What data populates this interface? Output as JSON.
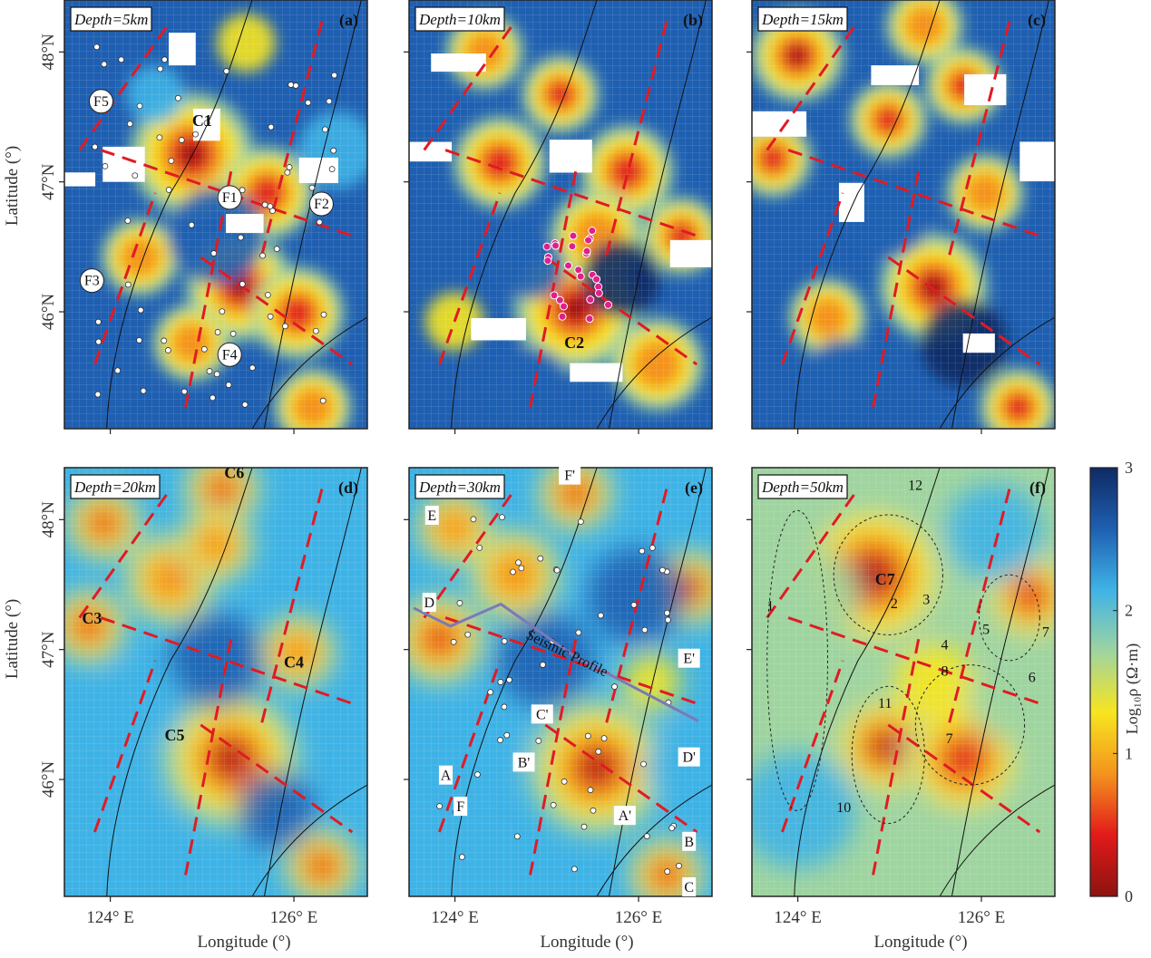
{
  "figure": {
    "y_axis_label": "Latitude (°)",
    "x_axis_label": "Longitude (°)",
    "colorbar_label": "Log₁₀ρ (Ω·m)"
  },
  "colormap": [
    "#8b1410",
    "#e21a1a",
    "#f4931e",
    "#f7e51f",
    "#9fd4a0",
    "#3fb3e6",
    "#1f5fb1",
    "#0f2a63"
  ],
  "chart_data": [
    {
      "type": "heatmap",
      "tag": "(a)",
      "depth_label": "Depth=5km",
      "xlim": [
        123.5,
        126.8
      ],
      "ylim": [
        45.1,
        48.4
      ],
      "x_ticks": [
        124,
        126
      ],
      "x_tick_labels": [
        "",
        ""
      ],
      "y_ticks": [
        46,
        47,
        48
      ],
      "y_tick_labels": [
        "46°N",
        "47°N",
        "48°N"
      ],
      "annotations": [
        {
          "text": "C1",
          "x": 125.0,
          "y": 47.43,
          "style": "white"
        },
        {
          "text": "F1",
          "x": 125.3,
          "y": 46.88,
          "style": "circle"
        },
        {
          "text": "F2",
          "x": 126.3,
          "y": 46.83,
          "style": "circle"
        },
        {
          "text": "F3",
          "x": 123.8,
          "y": 46.24,
          "style": "circle"
        },
        {
          "text": "F4",
          "x": 125.3,
          "y": 45.67,
          "style": "circle"
        },
        {
          "text": "F5",
          "x": 123.9,
          "y": 47.62,
          "style": "circle"
        }
      ]
    },
    {
      "type": "heatmap",
      "tag": "(b)",
      "depth_label": "Depth=10km",
      "xlim": [
        123.5,
        126.8
      ],
      "ylim": [
        45.1,
        48.4
      ],
      "x_ticks": [
        124,
        126
      ],
      "x_tick_labels": [
        "",
        ""
      ],
      "y_ticks": [
        46,
        47,
        48
      ],
      "y_tick_labels": [
        "",
        "",
        ""
      ],
      "annotations": [
        {
          "text": "C2",
          "x": 125.3,
          "y": 45.72,
          "style": "white"
        }
      ]
    },
    {
      "type": "heatmap",
      "tag": "(c)",
      "depth_label": "Depth=15km",
      "xlim": [
        123.5,
        126.8
      ],
      "ylim": [
        45.1,
        48.4
      ],
      "x_ticks": [
        124,
        126
      ],
      "x_tick_labels": [
        "",
        ""
      ],
      "y_ticks": [
        46,
        47,
        48
      ],
      "y_tick_labels": [
        "",
        "",
        ""
      ],
      "annotations": []
    },
    {
      "type": "heatmap",
      "tag": "(d)",
      "depth_label": "Depth=20km",
      "xlim": [
        123.5,
        126.8
      ],
      "ylim": [
        45.1,
        48.4
      ],
      "x_ticks": [
        124,
        126
      ],
      "x_tick_labels": [
        "124° E",
        "126° E"
      ],
      "y_ticks": [
        46,
        47,
        48
      ],
      "y_tick_labels": [
        "46°N",
        "47°N",
        "48°N"
      ],
      "annotations": [
        {
          "text": "C3",
          "x": 123.8,
          "y": 47.2,
          "style": "white"
        },
        {
          "text": "C4",
          "x": 126.0,
          "y": 46.86,
          "style": "white"
        },
        {
          "text": "C5",
          "x": 124.7,
          "y": 46.3,
          "style": "white"
        },
        {
          "text": "C6",
          "x": 125.35,
          "y": 48.32,
          "style": "white"
        }
      ]
    },
    {
      "type": "heatmap",
      "tag": "(e)",
      "depth_label": "Depth=30km",
      "xlim": [
        123.5,
        126.8
      ],
      "ylim": [
        45.1,
        48.4
      ],
      "x_ticks": [
        124,
        126
      ],
      "x_tick_labels": [
        "124° E",
        "126° E"
      ],
      "y_ticks": [
        46,
        47,
        48
      ],
      "y_tick_labels": [
        "",
        "",
        ""
      ],
      "annotations": [
        {
          "text": "E",
          "x": 123.75,
          "y": 48.03,
          "style": "box"
        },
        {
          "text": "D",
          "x": 123.72,
          "y": 47.36,
          "style": "box"
        },
        {
          "text": "F'",
          "x": 125.25,
          "y": 48.34,
          "style": "box"
        },
        {
          "text": "E'",
          "x": 126.55,
          "y": 46.93,
          "style": "box"
        },
        {
          "text": "D'",
          "x": 126.55,
          "y": 46.17,
          "style": "box"
        },
        {
          "text": "C'",
          "x": 124.95,
          "y": 46.5,
          "style": "box"
        },
        {
          "text": "B'",
          "x": 124.75,
          "y": 46.13,
          "style": "box"
        },
        {
          "text": "A",
          "x": 123.9,
          "y": 46.03,
          "style": "box"
        },
        {
          "text": "F",
          "x": 124.06,
          "y": 45.79,
          "style": "box"
        },
        {
          "text": "A'",
          "x": 125.85,
          "y": 45.72,
          "style": "box"
        },
        {
          "text": "B",
          "x": 126.55,
          "y": 45.52,
          "style": "box"
        },
        {
          "text": "C",
          "x": 126.55,
          "y": 45.17,
          "style": "box"
        },
        {
          "text": "Seismic Profile",
          "x": 125.2,
          "y": 46.94,
          "style": "profile"
        }
      ]
    },
    {
      "type": "heatmap",
      "tag": "(f)",
      "depth_label": "Depth=50km",
      "xlim": [
        123.5,
        126.8
      ],
      "ylim": [
        45.1,
        48.4
      ],
      "x_ticks": [
        124,
        126
      ],
      "x_tick_labels": [
        "124° E",
        "126° E"
      ],
      "y_ticks": [
        46,
        47,
        48
      ],
      "y_tick_labels": [
        "",
        "",
        ""
      ],
      "annotations": [
        {
          "text": "C7",
          "x": 124.95,
          "y": 47.5,
          "style": "white"
        },
        {
          "text": "12",
          "x": 125.28,
          "y": 48.23,
          "style": "plain"
        },
        {
          "text": "1",
          "x": 123.7,
          "y": 47.3,
          "style": "plain"
        },
        {
          "text": "2",
          "x": 125.05,
          "y": 47.32,
          "style": "plain"
        },
        {
          "text": "3",
          "x": 125.4,
          "y": 47.35,
          "style": "plain"
        },
        {
          "text": "4",
          "x": 125.6,
          "y": 47.0,
          "style": "plain"
        },
        {
          "text": "8",
          "x": 125.6,
          "y": 46.8,
          "style": "plain"
        },
        {
          "text": "5",
          "x": 126.05,
          "y": 47.12,
          "style": "plain"
        },
        {
          "text": "6",
          "x": 126.55,
          "y": 46.75,
          "style": "plain"
        },
        {
          "text": "7",
          "x": 126.7,
          "y": 47.1,
          "style": "plain"
        },
        {
          "text": "11",
          "x": 124.95,
          "y": 46.55,
          "style": "plain"
        },
        {
          "text": "7",
          "x": 125.65,
          "y": 46.28,
          "style": "plain"
        },
        {
          "text": "10",
          "x": 124.5,
          "y": 45.75,
          "style": "plain"
        }
      ]
    }
  ],
  "colorbar": {
    "min": 0,
    "max": 3,
    "ticks": [
      0,
      1,
      2,
      3
    ],
    "tick_labels": [
      "0",
      "1",
      "2",
      "3"
    ]
  }
}
